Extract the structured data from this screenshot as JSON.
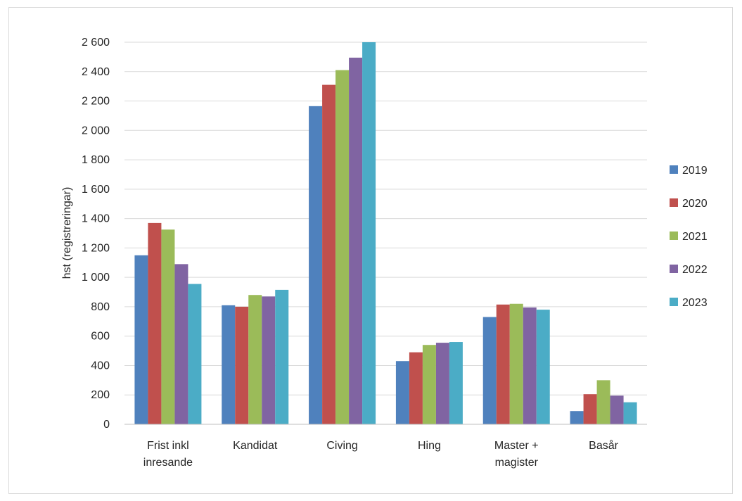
{
  "chart_data": {
    "type": "bar",
    "ylabel": "hst (registreringar)",
    "ylim": [
      0,
      2600
    ],
    "yticks": [
      0,
      200,
      400,
      600,
      800,
      1000,
      1200,
      1400,
      1600,
      1800,
      2000,
      2200,
      2400,
      2600
    ],
    "ytick_labels": [
      "0",
      "200",
      "400",
      "600",
      "800",
      "1 000",
      "1 200",
      "1 400",
      "1 600",
      "1 800",
      "2 000",
      "2 200",
      "2 400",
      "2 600"
    ],
    "grid": true,
    "legend_position": "right",
    "categories": [
      [
        "Frist inkl",
        "inresande"
      ],
      [
        "Kandidat"
      ],
      [
        "Civing"
      ],
      [
        "Hing"
      ],
      [
        "Master +",
        "magister"
      ],
      [
        "Basår"
      ]
    ],
    "series": [
      {
        "name": "2019",
        "color": "#4f81bd",
        "values": [
          1150,
          810,
          2165,
          430,
          730,
          90
        ]
      },
      {
        "name": "2020",
        "color": "#c0504d",
        "values": [
          1370,
          800,
          2310,
          490,
          815,
          205
        ]
      },
      {
        "name": "2021",
        "color": "#9bbb59",
        "values": [
          1325,
          880,
          2410,
          540,
          820,
          300
        ]
      },
      {
        "name": "2022",
        "color": "#8064a2",
        "values": [
          1090,
          870,
          2495,
          555,
          795,
          195
        ]
      },
      {
        "name": "2023",
        "color": "#4bacc6",
        "values": [
          955,
          915,
          2600,
          560,
          780,
          150
        ]
      }
    ]
  }
}
